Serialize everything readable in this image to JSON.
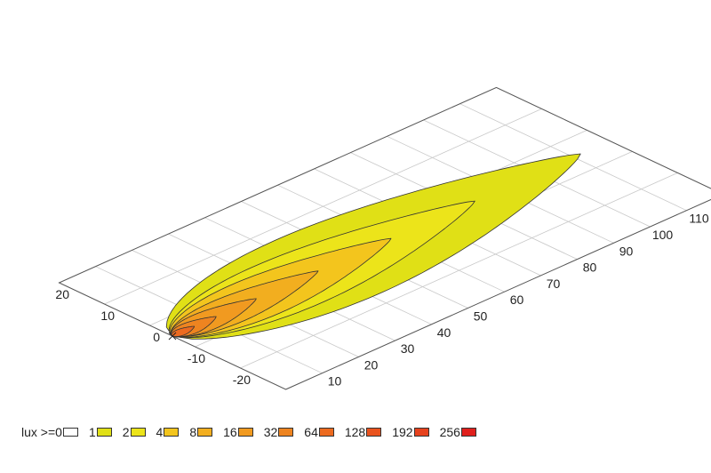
{
  "chart_data": {
    "type": "area",
    "title": "",
    "xlabel": "",
    "ylabel": "",
    "y_ticks": [
      "20",
      "10",
      "0",
      "-10",
      "-20"
    ],
    "x_ticks": [
      "10",
      "20",
      "30",
      "40",
      "50",
      "60",
      "70",
      "80",
      "90",
      "100",
      "110"
    ],
    "y_range": [
      -25,
      25
    ],
    "x_range": [
      0,
      120
    ],
    "grid": true,
    "legend_position": "bottom",
    "legend_prefix": "lux >= ",
    "levels": [
      {
        "label": "0",
        "color": "#ffffff"
      },
      {
        "label": "1",
        "color": "#e0e016"
      },
      {
        "label": "2",
        "color": "#ece41a"
      },
      {
        "label": "4",
        "color": "#f3c51d"
      },
      {
        "label": "8",
        "color": "#f2ae1f"
      },
      {
        "label": "16",
        "color": "#f19a20"
      },
      {
        "label": "32",
        "color": "#ee8420"
      },
      {
        "label": "64",
        "color": "#ec6a1f"
      },
      {
        "label": "128",
        "color": "#e9531e"
      },
      {
        "label": "192",
        "color": "#e6421d"
      },
      {
        "label": "256",
        "color": "#e0201c"
      }
    ],
    "contours": [
      {
        "lux": 1,
        "x": [
          0,
          112
        ],
        "max_half_width": 12
      },
      {
        "lux": 2,
        "x": [
          0,
          83
        ],
        "max_half_width": 8
      },
      {
        "lux": 4,
        "x": [
          0,
          60
        ],
        "max_half_width": 6
      },
      {
        "lux": 8,
        "x": [
          0,
          40
        ],
        "max_half_width": 4
      },
      {
        "lux": 16,
        "x": [
          0,
          23
        ],
        "max_half_width": 2.8
      },
      {
        "lux": 32,
        "x": [
          0,
          12
        ],
        "max_half_width": 1.8
      },
      {
        "lux": 64,
        "x": [
          0,
          6
        ],
        "max_half_width": 1.0
      }
    ]
  }
}
